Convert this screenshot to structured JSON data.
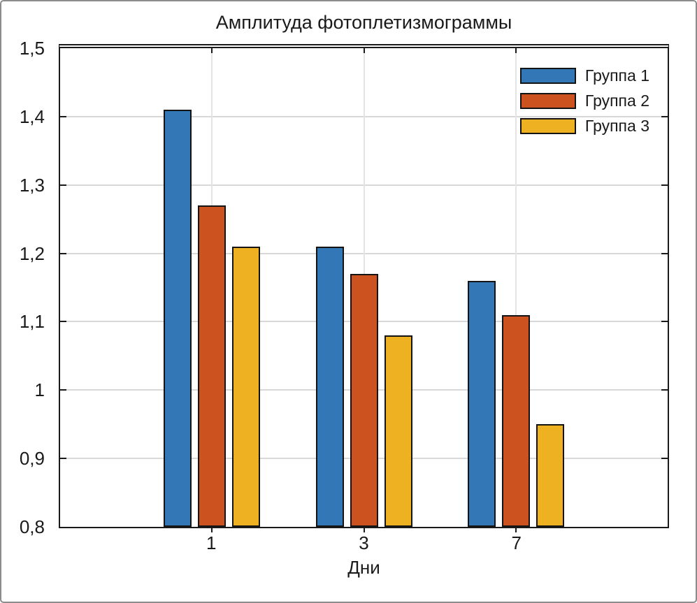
{
  "window": {
    "background": "#ffffff",
    "frame_border_color": "#8c8c8c"
  },
  "chart_data": {
    "type": "bar",
    "title": "Амплитуда фотоплетизмограммы",
    "xlabel": "Дни",
    "ylabel": "",
    "categories": [
      "1",
      "3",
      "7"
    ],
    "category_positions": [
      0.25,
      0.5,
      0.75
    ],
    "series": [
      {
        "name": "Группа 1",
        "color": "#3377B6",
        "values": [
          1.41,
          1.21,
          1.16
        ]
      },
      {
        "name": "Группа 2",
        "color": "#CC5320",
        "values": [
          1.27,
          1.17,
          1.11
        ]
      },
      {
        "name": "Группа 3",
        "color": "#EDB122",
        "values": [
          1.21,
          1.08,
          0.95
        ]
      }
    ],
    "ylim": [
      0.8,
      1.5
    ],
    "yticks": [
      0.8,
      0.9,
      1.0,
      1.1,
      1.2,
      1.3,
      1.4,
      1.5
    ],
    "ytick_labels": [
      "0,8",
      "0,9",
      "1",
      "1,1",
      "1,2",
      "1,3",
      "1,4",
      "1,5"
    ],
    "decimal_separator": ",",
    "grid": true,
    "legend_position": "top-right",
    "axis_color": "#1a1a1a",
    "hgrid_color": "#d8d8d8",
    "vgrid_color": "#e4e4e4",
    "bar_edge_color": "#141414"
  }
}
